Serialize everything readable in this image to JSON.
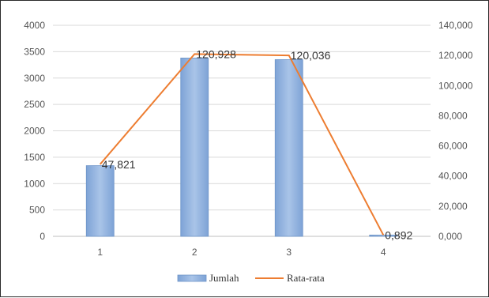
{
  "chart_data": {
    "type": "bar",
    "categories": [
      "1",
      "2",
      "3",
      "4"
    ],
    "series": [
      {
        "name": "Jumlah",
        "type": "bar",
        "axis": "left",
        "values": [
          1340,
          3380,
          3350,
          25
        ],
        "color": "#8fb1de"
      },
      {
        "name": "Rata-rata",
        "type": "line",
        "axis": "right",
        "values": [
          47.821,
          120.928,
          120.036,
          0.892
        ],
        "color": "#ed7d31"
      }
    ],
    "data_labels": [
      "47,821",
      "120,928",
      "120,036",
      "0,892"
    ],
    "left_axis": {
      "ylim": [
        0,
        4000
      ],
      "ticks": [
        0,
        500,
        1000,
        1500,
        2000,
        2500,
        3000,
        3500,
        4000
      ],
      "tick_labels": [
        "0",
        "500",
        "1000",
        "1500",
        "2000",
        "2500",
        "3000",
        "3500",
        "4000"
      ]
    },
    "right_axis": {
      "ylim": [
        0,
        140
      ],
      "ticks": [
        0,
        20,
        40,
        60,
        80,
        100,
        120,
        140
      ],
      "tick_labels": [
        "0,000",
        "20,000",
        "40,000",
        "60,000",
        "80,000",
        "100,000",
        "120,000",
        "140,000"
      ]
    },
    "grid": true,
    "legend_position": "bottom",
    "legend": [
      "Jumlah",
      "Rata-rata"
    ]
  }
}
